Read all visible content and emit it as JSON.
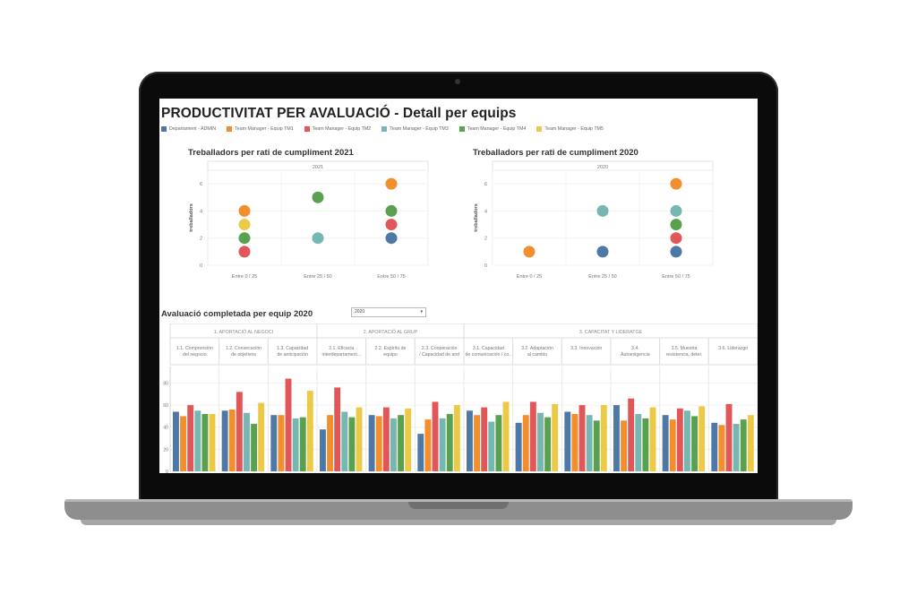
{
  "dashboard": {
    "title": "PRODUCTIVITAT PER AVALUACIÓ -  Detall per equips",
    "legend": [
      {
        "label": "Departament - ADMIN",
        "color": "#4e79a7"
      },
      {
        "label": "Team Manager - Equip TM1",
        "color": "#f28e2b"
      },
      {
        "label": "Team Manager - Equip TM2",
        "color": "#e15759"
      },
      {
        "label": "Team Manager - Equip TM3",
        "color": "#76b7b2"
      },
      {
        "label": "Team Manager - Equip TM4",
        "color": "#59a14f"
      },
      {
        "label": "Team Manager - Equip TM5",
        "color": "#edc948"
      }
    ]
  },
  "chart_data": [
    {
      "type": "scatter",
      "title": "Treballadors per rati de cumpliment  2021",
      "header": "2021",
      "ylabel": "treballadors",
      "categories": [
        "Entre 0 / 25",
        "Entre 25 / 50",
        "Entre 50 / 75"
      ],
      "yticks": [
        0,
        2,
        4,
        6
      ],
      "ylim": [
        0,
        7
      ],
      "points": [
        {
          "category": "Entre 0 / 25",
          "y": 4,
          "color": "#f28e2b"
        },
        {
          "category": "Entre 0 / 25",
          "y": 3,
          "color": "#edc948"
        },
        {
          "category": "Entre 0 / 25",
          "y": 2,
          "color": "#59a14f"
        },
        {
          "category": "Entre 0 / 25",
          "y": 1,
          "color": "#e15759"
        },
        {
          "category": "Entre 25 / 50",
          "y": 5,
          "color": "#59a14f"
        },
        {
          "category": "Entre 25 / 50",
          "y": 2,
          "color": "#76b7b2"
        },
        {
          "category": "Entre 50 / 75",
          "y": 6,
          "color": "#f28e2b"
        },
        {
          "category": "Entre 50 / 75",
          "y": 4,
          "color": "#59a14f"
        },
        {
          "category": "Entre 50 / 75",
          "y": 3,
          "color": "#e15759"
        },
        {
          "category": "Entre 50 / 75",
          "y": 2,
          "color": "#4e79a7"
        }
      ]
    },
    {
      "type": "scatter",
      "title": "Treballadors per rati de cumpliment  2020",
      "header": "2020",
      "ylabel": "treballadors",
      "categories": [
        "Entre 0 / 25",
        "Entre 25 / 50",
        "Entre 50 / 75"
      ],
      "yticks": [
        0,
        2,
        4,
        6
      ],
      "ylim": [
        0,
        7
      ],
      "points": [
        {
          "category": "Entre 0 / 25",
          "y": 1,
          "color": "#f28e2b"
        },
        {
          "category": "Entre 25 / 50",
          "y": 4,
          "color": "#76b7b2"
        },
        {
          "category": "Entre 25 / 50",
          "y": 1,
          "color": "#4e79a7"
        },
        {
          "category": "Entre 50 / 75",
          "y": 6,
          "color": "#f28e2b"
        },
        {
          "category": "Entre 50 / 75",
          "y": 4,
          "color": "#76b7b2"
        },
        {
          "category": "Entre 50 / 75",
          "y": 3,
          "color": "#59a14f"
        },
        {
          "category": "Entre 50 / 75",
          "y": 2,
          "color": "#e15759"
        },
        {
          "category": "Entre 50 / 75",
          "y": 1,
          "color": "#4e79a7"
        }
      ]
    },
    {
      "type": "bar",
      "title": "Avaluació completada per  equip 2020",
      "filter_value": "2020",
      "groups": [
        {
          "label": "1. APORTACIÓ AL NEGOCI",
          "span": 3
        },
        {
          "label": "2. APORTACIÓ AL GRUP",
          "span": 3
        },
        {
          "label": "3. CAPACITAT Y LIDERATGE",
          "span": 6
        }
      ],
      "categories": [
        "1.1. Comprensión del negocio",
        "1.2. Consecución de objetivos",
        "1.3. Capacidad de anticipación",
        "2.1. Eficacia interdepartament...",
        "2.2. Espíritu de equipo",
        "2.3. Cooperación / Capacidad de and",
        "3.1. Capacidad de comunicación / co..",
        "3.2. Adaptación al cambio",
        "3.3. Innovación",
        "3.4. Autoexigencia",
        "3.5. Muestra resistencia, deter.",
        "3.6. Liderazgo"
      ],
      "yticks": [
        0,
        20,
        40,
        60,
        80
      ],
      "ylim": [
        0,
        95
      ],
      "series": [
        {
          "name": "Departament - ADMIN",
          "color": "#4e79a7",
          "values": [
            54,
            55,
            51,
            38,
            51,
            34,
            55,
            44,
            54,
            60,
            51,
            44
          ]
        },
        {
          "name": "Team Manager - Equip TM1",
          "color": "#f28e2b",
          "values": [
            50,
            56,
            51,
            51,
            50,
            47,
            51,
            51,
            52,
            46,
            47,
            42
          ]
        },
        {
          "name": "Team Manager - Equip TM2",
          "color": "#e15759",
          "values": [
            60,
            72,
            84,
            76,
            58,
            63,
            58,
            63,
            60,
            66,
            57,
            61
          ]
        },
        {
          "name": "Team Manager - Equip TM3",
          "color": "#76b7b2",
          "values": [
            55,
            53,
            48,
            54,
            48,
            48,
            45,
            53,
            51,
            52,
            55,
            43
          ]
        },
        {
          "name": "Team Manager - Equip TM4",
          "color": "#59a14f",
          "values": [
            52,
            43,
            49,
            49,
            51,
            52,
            51,
            49,
            46,
            48,
            50,
            47
          ]
        },
        {
          "name": "Team Manager - Equip TM5",
          "color": "#edc948",
          "values": [
            52,
            62,
            73,
            58,
            57,
            60,
            63,
            61,
            60,
            58,
            59,
            51
          ]
        }
      ]
    }
  ]
}
